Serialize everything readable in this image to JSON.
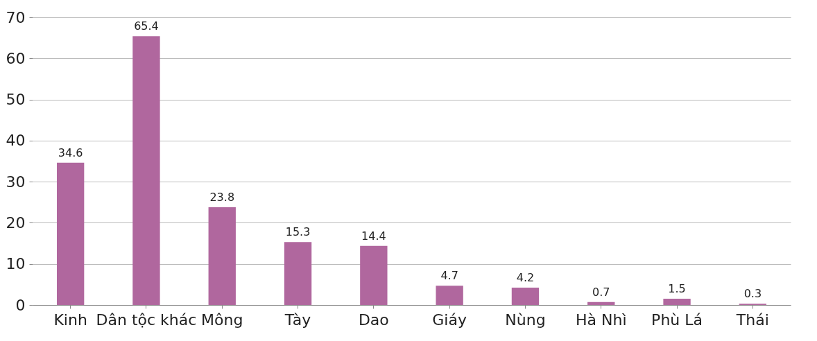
{
  "chart_data": {
    "type": "bar",
    "categories": [
      "Kinh",
      "Dân tộc khác",
      "Mông",
      "Tày",
      "Dao",
      "Giáy",
      "Nùng",
      "Hà Nhì",
      "Phù Lá",
      "Thái"
    ],
    "values": [
      34.6,
      65.4,
      23.8,
      15.3,
      14.4,
      4.7,
      4.2,
      0.7,
      1.5,
      0.3
    ],
    "color": "#b0679e",
    "ylim": [
      0,
      70
    ],
    "yticks": [
      0,
      10,
      20,
      30,
      40,
      50,
      60,
      70
    ],
    "grid": "y",
    "data_labels": true
  }
}
